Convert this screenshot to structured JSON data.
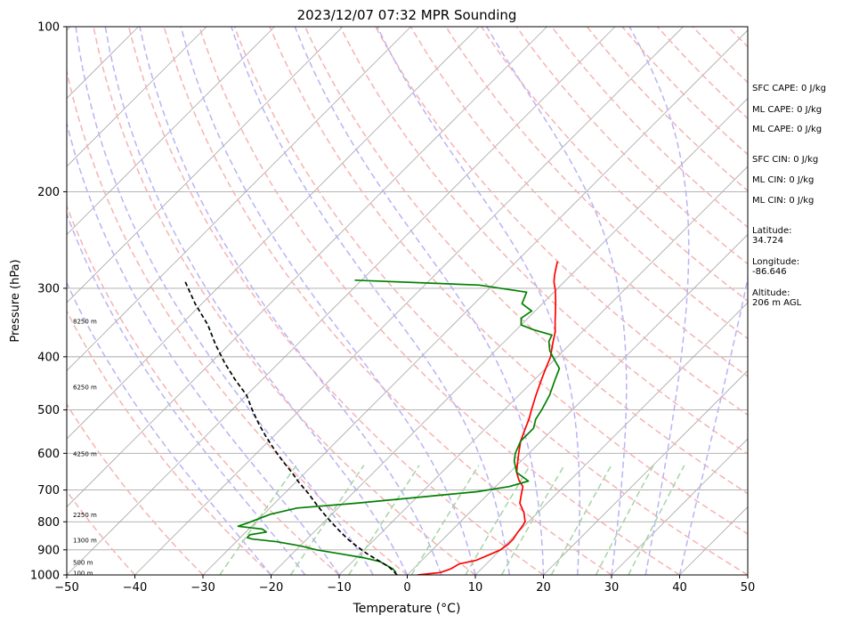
{
  "chart_data": {
    "type": "line",
    "subtype": "skew-t log-p sounding",
    "title": "2023/12/07 07:32 MPR Sounding",
    "xlabel": "Temperature (°C)",
    "ylabel": "Pressure (hPa)",
    "xlim": [
      -50,
      50
    ],
    "ylim": [
      1000,
      100
    ],
    "y_scale": "log",
    "x_ticks": [
      "−50",
      "−40",
      "−30",
      "−20",
      "−10",
      "0",
      "10",
      "20",
      "30",
      "40",
      "50"
    ],
    "y_ticks": [
      "100",
      "200",
      "300",
      "400",
      "500",
      "600",
      "700",
      "800",
      "900",
      "1000"
    ],
    "grid": true,
    "series": [
      {
        "role": "temperature",
        "color": "#ff0000",
        "points": [
          [
            1.5,
            1000
          ],
          [
            4.5,
            990
          ],
          [
            5.5,
            975
          ],
          [
            6,
            955
          ],
          [
            8,
            940
          ],
          [
            9,
            920
          ],
          [
            9.5,
            910
          ],
          [
            10,
            900
          ],
          [
            10.3,
            880
          ],
          [
            10.3,
            860
          ],
          [
            10,
            840
          ],
          [
            9.8,
            820
          ],
          [
            9.5,
            800
          ],
          [
            8,
            770
          ],
          [
            6,
            740
          ],
          [
            5,
            715
          ],
          [
            4,
            690
          ],
          [
            2.5,
            672
          ],
          [
            1,
            650
          ],
          [
            0,
            630
          ],
          [
            -1.5,
            600
          ],
          [
            -3,
            570
          ],
          [
            -4,
            545
          ],
          [
            -5,
            520
          ],
          [
            -6,
            500
          ],
          [
            -7.5,
            470
          ],
          [
            -9,
            440
          ],
          [
            -10,
            420
          ],
          [
            -11,
            400
          ],
          [
            -12.5,
            380
          ],
          [
            -14,
            360
          ],
          [
            -15.5,
            345
          ],
          [
            -17,
            330
          ],
          [
            -18.5,
            316
          ],
          [
            -20,
            303
          ],
          [
            -21.5,
            292
          ],
          [
            -22.5,
            283
          ],
          [
            -24,
            268
          ]
        ]
      },
      {
        "role": "dewpoint",
        "color": "#008000",
        "points": [
          [
            -2,
            990
          ],
          [
            -3,
            975
          ],
          [
            -5,
            955
          ],
          [
            -6,
            945
          ],
          [
            -9,
            930
          ],
          [
            -13,
            915
          ],
          [
            -17,
            900
          ],
          [
            -20,
            885
          ],
          [
            -24,
            870
          ],
          [
            -28,
            860
          ],
          [
            -29,
            855
          ],
          [
            -29,
            845
          ],
          [
            -27,
            835
          ],
          [
            -28,
            825
          ],
          [
            -32,
            815
          ],
          [
            -31,
            803
          ],
          [
            -29,
            775
          ],
          [
            -26,
            755
          ],
          [
            -18,
            740
          ],
          [
            -9,
            720
          ],
          [
            -2,
            705
          ],
          [
            2,
            690
          ],
          [
            4,
            674
          ],
          [
            1,
            650
          ],
          [
            -1,
            620
          ],
          [
            -2,
            600
          ],
          [
            -3,
            570
          ],
          [
            -3,
            540
          ],
          [
            -4,
            520
          ],
          [
            -4.5,
            500
          ],
          [
            -5.5,
            470
          ],
          [
            -7,
            440
          ],
          [
            -8,
            420
          ],
          [
            -10,
            405
          ],
          [
            -12,
            390
          ],
          [
            -13.5,
            375
          ],
          [
            -14,
            365
          ],
          [
            -17.5,
            357
          ],
          [
            -20,
            350
          ],
          [
            -21,
            340
          ],
          [
            -20.5,
            330
          ],
          [
            -23,
            320
          ],
          [
            -24,
            305
          ],
          [
            -32,
            296
          ],
          [
            -51,
            290
          ]
        ]
      },
      {
        "role": "parcel",
        "color": "#000000",
        "points": [
          [
            -1.5,
            1000
          ],
          [
            -2.5,
            985
          ],
          [
            -4,
            965
          ],
          [
            -6.5,
            940
          ],
          [
            -9,
            915
          ],
          [
            -11.5,
            888
          ],
          [
            -14,
            860
          ],
          [
            -16.5,
            830
          ],
          [
            -19,
            800
          ],
          [
            -21.5,
            770
          ],
          [
            -24,
            740
          ],
          [
            -26.5,
            710
          ],
          [
            -29.5,
            678
          ],
          [
            -32,
            650
          ],
          [
            -35,
            620
          ],
          [
            -38,
            590
          ],
          [
            -41,
            560
          ],
          [
            -44,
            530
          ],
          [
            -47,
            500
          ],
          [
            -50,
            470
          ],
          [
            -54,
            440
          ],
          [
            -58,
            410
          ],
          [
            -62,
            380
          ],
          [
            -66,
            350
          ],
          [
            -71,
            320
          ],
          [
            -76,
            290
          ]
        ]
      }
    ],
    "height_labels": [
      {
        "text": "100 m",
        "p": 995
      },
      {
        "text": "500 m",
        "p": 950
      },
      {
        "text": "1300 m",
        "p": 866
      },
      {
        "text": "2250 m",
        "p": 778
      },
      {
        "text": "4250 m",
        "p": 603
      },
      {
        "text": "6250 m",
        "p": 455
      },
      {
        "text": "8250 m",
        "p": 345
      }
    ],
    "isotherms": [
      -150,
      -140,
      -130,
      -120,
      -110,
      -100,
      -90,
      -80,
      -70,
      -60,
      -50,
      -40,
      -30,
      -20,
      -10,
      0,
      10,
      20,
      30,
      40,
      50
    ],
    "dry_adiabats_theta_C": [
      -40,
      -30,
      -20,
      -10,
      0,
      10,
      20,
      30,
      40,
      50,
      60,
      70,
      80,
      90,
      100,
      110,
      120,
      130,
      140,
      150,
      160,
      170,
      180,
      190,
      200,
      210,
      220,
      230,
      240,
      250,
      260,
      270,
      280,
      290,
      300,
      310,
      320,
      330,
      340,
      350,
      360,
      370,
      380,
      390,
      400,
      410,
      420,
      430,
      440,
      450,
      460,
      470,
      480,
      490,
      500
    ],
    "moist_adiabats_C": [
      -20,
      -15,
      -10,
      -5,
      0,
      5,
      10,
      15,
      20,
      25,
      30,
      35,
      40
    ],
    "mixing_ratios_gkg": [
      0.4,
      1,
      2,
      4,
      7,
      10,
      16,
      24,
      32
    ],
    "colors": {
      "temperature": "#ff0000",
      "dewpoint": "#008000",
      "parcel": "#000000",
      "isotherm": "#a8a8a8",
      "isobar": "#a8a8a8",
      "dry_adiabat": "#f6b3b3",
      "moist_adiabat": "#b9b3f5",
      "mixing_ratio": "#a6d4a6"
    }
  },
  "side_panel": {
    "sfc_cape": "SFC CAPE: 0 J/kg",
    "ml_cape_1": "ML CAPE: 0 J/kg",
    "ml_cape_2": "ML CAPE: 0 J/kg",
    "sfc_cin": "SFC CIN: 0 J/kg",
    "ml_cin_1": "ML CIN: 0 J/kg",
    "ml_cin_2": "ML CIN: 0 J/kg",
    "latitude_label": "Latitude:",
    "latitude_value": "34.724",
    "longitude_label": "Longitude:",
    "longitude_value": "-86.646",
    "altitude_label": "Altitude:",
    "altitude_value": "206 m AGL"
  }
}
